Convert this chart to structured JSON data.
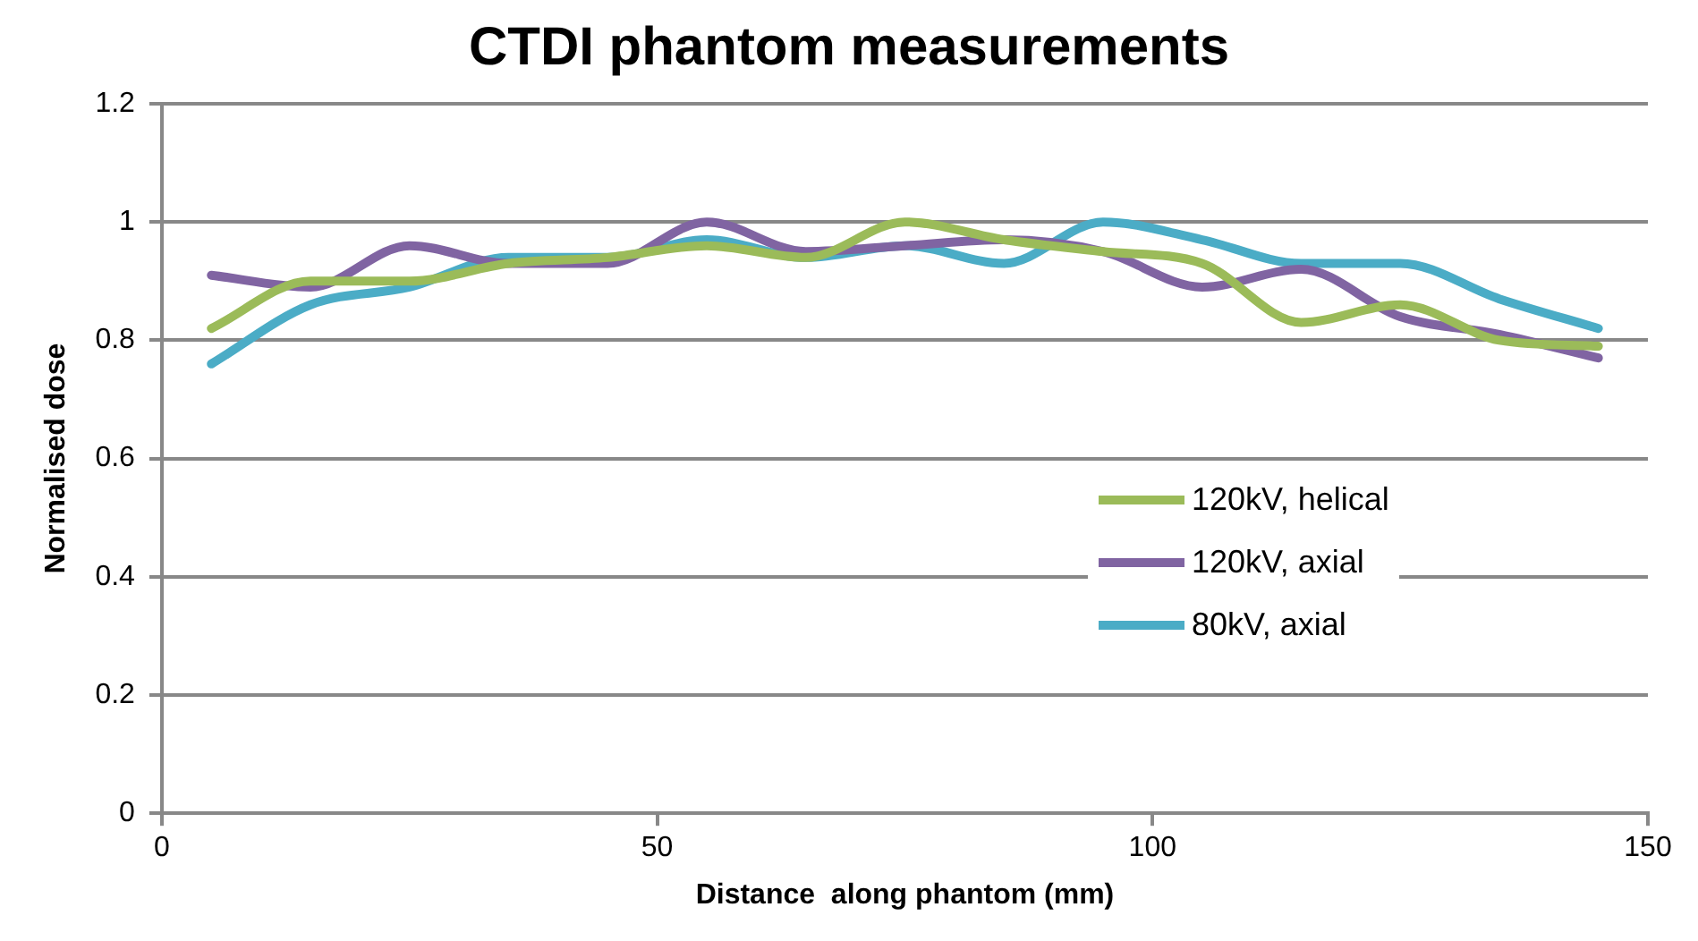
{
  "chart_data": {
    "type": "line",
    "title": "CTDI phantom measurements",
    "xlabel": "Distance  along phantom (mm)",
    "ylabel": "Normalised dose",
    "x": [
      5,
      15,
      25,
      35,
      45,
      55,
      65,
      75,
      85,
      95,
      105,
      115,
      125,
      135,
      145
    ],
    "series": [
      {
        "name": "120kV, helical",
        "color": "#9bbb59",
        "values": [
          0.82,
          0.9,
          0.9,
          0.93,
          0.94,
          0.96,
          0.94,
          1.0,
          0.97,
          0.95,
          0.93,
          0.83,
          0.86,
          0.8,
          0.79
        ]
      },
      {
        "name": "120kV, axial",
        "color": "#8064a2",
        "values": [
          0.91,
          0.89,
          0.96,
          0.93,
          0.93,
          1.0,
          0.95,
          0.96,
          0.97,
          0.95,
          0.89,
          0.92,
          0.84,
          0.81,
          0.77
        ]
      },
      {
        "name": "80kV, axial",
        "color": "#4bacc6",
        "values": [
          0.76,
          0.86,
          0.89,
          0.94,
          0.94,
          0.97,
          0.94,
          0.96,
          0.93,
          1.0,
          0.97,
          0.93,
          0.93,
          0.87,
          0.82
        ]
      }
    ],
    "xlim": [
      0,
      150
    ],
    "xticks": [
      0,
      50,
      100,
      150
    ],
    "ylim": [
      0,
      1.2
    ],
    "yticks": [
      0,
      0.2,
      0.4,
      0.6,
      0.8,
      1,
      1.2
    ],
    "grid": "y",
    "legend": "right",
    "marker": "none",
    "line_style": "solid"
  }
}
